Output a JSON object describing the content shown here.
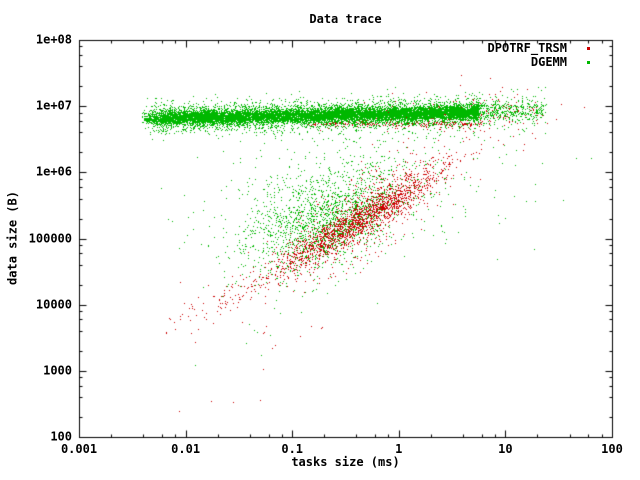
{
  "colors": {
    "background": "#ffffff",
    "text": "#000000",
    "border": "#000000"
  },
  "chart_data": {
    "type": "scatter",
    "title": "Data trace",
    "xlabel": "tasks size (ms)",
    "ylabel": "data size (B)",
    "x_axis": {
      "scale": "log",
      "min_log": -3,
      "max_log": 2,
      "ticks": [
        {
          "log": -3,
          "label": "0.001"
        },
        {
          "log": -2,
          "label": "0.01"
        },
        {
          "log": -1,
          "label": "0.1"
        },
        {
          "log": 0,
          "label": "1"
        },
        {
          "log": 1,
          "label": "10"
        },
        {
          "log": 2,
          "label": "100"
        }
      ],
      "minor_multiples": [
        2,
        4,
        6,
        8
      ]
    },
    "y_axis": {
      "scale": "log",
      "min_log": 2,
      "max_log": 8,
      "ticks": [
        {
          "log": 2,
          "label": "100"
        },
        {
          "log": 3,
          "label": "1000"
        },
        {
          "log": 4,
          "label": "10000"
        },
        {
          "log": 5,
          "label": "100000"
        },
        {
          "log": 6,
          "label": "1e+06"
        },
        {
          "log": 7,
          "label": "1e+07"
        },
        {
          "log": 8,
          "label": "1e+08"
        }
      ],
      "minor_multiples": [
        2,
        4,
        6,
        8
      ]
    },
    "legend": {
      "position": "top-right",
      "marker": "dot"
    },
    "series": [
      {
        "name": "DPOTRF_TRSM",
        "color": "#cc0000",
        "clusters": [
          {
            "type": "gauss",
            "n": 2300,
            "cx": -0.38,
            "cy": 5.28,
            "sx": 0.4,
            "sy": 0.13,
            "sy2": 0.3,
            "frac2": 0.3,
            "b": 0.95
          },
          {
            "type": "diag",
            "n": 85,
            "x0": -2.2,
            "x1": -1.35,
            "pow": 0.7,
            "a": 5.64,
            "b": 0.95,
            "sd": 0.12,
            "sd2": 0.25,
            "frac2": 0.2
          },
          {
            "type": "diag",
            "n": 280,
            "x0": -0.85,
            "x1": 0.78,
            "pow": 1.0,
            "a": 6.74,
            "b": 0.0,
            "sd": 0.02,
            "sd2": 0.05,
            "frac2": 0.25
          },
          {
            "type": "diag",
            "n": 180,
            "x0": -0.35,
            "x1": 1.3,
            "pow": 1.0,
            "a": 6.88,
            "b": 0.02,
            "sd": 0.08,
            "sd2": 0.14,
            "frac2": 0.4
          },
          {
            "type": "gauss",
            "n": 55,
            "cx": 1.0,
            "cy": 6.85,
            "sx": 0.3,
            "sy": 0.22,
            "sy2": 0.3,
            "frac2": 0.15,
            "b": 0.0
          },
          {
            "type": "gauss",
            "n": 14,
            "cx": -1.2,
            "cy": 3.4,
            "sx": 0.55,
            "sy": 0.45,
            "sy2": 0.6,
            "frac2": 0.2,
            "b": 1.0
          }
        ]
      },
      {
        "name": "DGEMM",
        "color": "#00b800",
        "clusters": [
          {
            "type": "diag",
            "n": 13000,
            "x0": -2.42,
            "x1": 0.75,
            "pow": 1.0,
            "a": 6.89,
            "b": 0.03,
            "sd": 0.05,
            "sd2": 0.11,
            "frac2": 0.33,
            "taper0": 0.18,
            "taper1": 0.06
          },
          {
            "type": "diag",
            "n": 550,
            "x0": 0.7,
            "x1": 1.38,
            "pow": 1.3,
            "a": 6.9,
            "b": 0.03,
            "sd": 0.07,
            "sd2": 0.13,
            "frac2": 0.5
          },
          {
            "type": "gauss",
            "n": 1600,
            "cx": -0.72,
            "cy": 5.3,
            "sx": 0.4,
            "sy": 0.36,
            "sy2": 0.5,
            "frac2": 0.15,
            "b": 0.5,
            "ymax": 6.55
          },
          {
            "type": "gauss",
            "n": 300,
            "cx": -0.35,
            "cy": 5.85,
            "sx": 0.8,
            "sy": 0.5,
            "sy2": 0.65,
            "frac2": 0.2,
            "b": 0.15,
            "ymax": 6.62
          },
          {
            "type": "gauss",
            "n": 8,
            "cx": -0.9,
            "cy": 3.8,
            "sx": 0.55,
            "sy": 0.55,
            "sy2": 0.6,
            "frac2": 0.2,
            "b": 0.8
          }
        ]
      }
    ]
  }
}
